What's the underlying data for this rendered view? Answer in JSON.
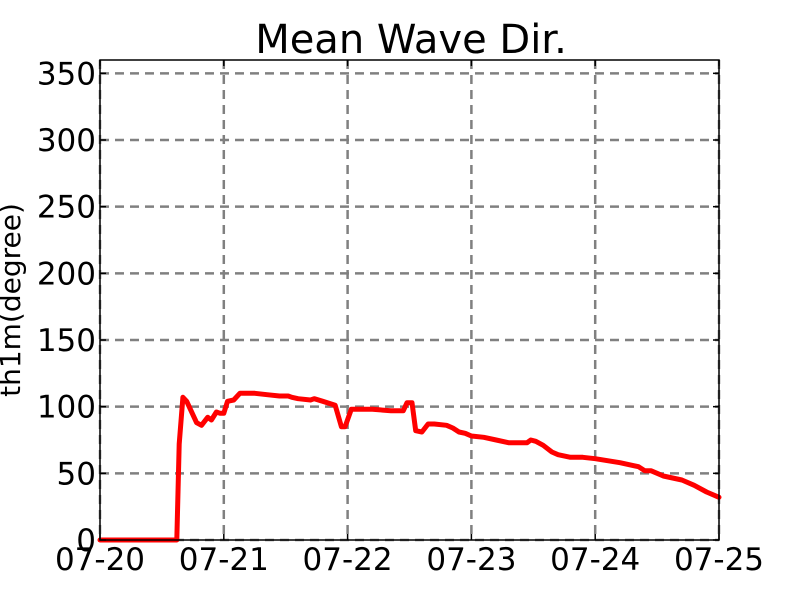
{
  "chart_data": {
    "type": "line",
    "title": "Mean Wave Dir.",
    "xlabel": "",
    "ylabel": "th1m(degree)",
    "x_ticks": [
      "07-20",
      "07-21",
      "07-22",
      "07-23",
      "07-24",
      "07-25"
    ],
    "y_ticks": [
      "0",
      "50",
      "100",
      "150",
      "200",
      "250",
      "300",
      "350"
    ],
    "xlim": [
      0,
      5
    ],
    "ylim": [
      0,
      360
    ],
    "grid": true,
    "series": [
      {
        "color": "#ff0000",
        "x": [
          0,
          0.62,
          0.64,
          0.67,
          0.7,
          0.73,
          0.78,
          0.82,
          0.87,
          0.9,
          0.94,
          0.97,
          1.0,
          1.03,
          1.08,
          1.13,
          1.17,
          1.2,
          1.25,
          1.35,
          1.45,
          1.52,
          1.55,
          1.6,
          1.7,
          1.73,
          1.8,
          1.9,
          1.95,
          1.98,
          2.03,
          2.1,
          2.2,
          2.35,
          2.45,
          2.48,
          2.52,
          2.55,
          2.6,
          2.65,
          2.7,
          2.8,
          2.85,
          2.9,
          2.95,
          3.0,
          3.1,
          3.2,
          3.3,
          3.45,
          3.48,
          3.52,
          3.58,
          3.65,
          3.7,
          3.8,
          3.9,
          4.0,
          4.2,
          4.35,
          4.4,
          4.45,
          4.5,
          4.55,
          4.7,
          4.8,
          4.9,
          5.0
        ],
        "values": [
          0,
          0,
          72,
          107,
          104,
          98,
          88,
          86,
          92,
          90,
          96,
          95,
          95,
          104,
          105,
          110,
          110,
          110,
          110,
          109,
          108,
          108,
          107,
          106,
          105,
          106,
          104,
          101,
          85,
          85,
          98,
          98,
          98,
          97,
          97,
          103,
          103,
          82,
          81,
          87,
          87,
          86,
          84,
          81,
          80,
          78,
          77,
          75,
          73,
          73,
          75,
          74,
          71,
          66,
          64,
          62,
          62,
          61,
          58,
          55,
          52,
          52,
          50,
          48,
          45,
          41,
          36,
          32
        ]
      }
    ]
  }
}
